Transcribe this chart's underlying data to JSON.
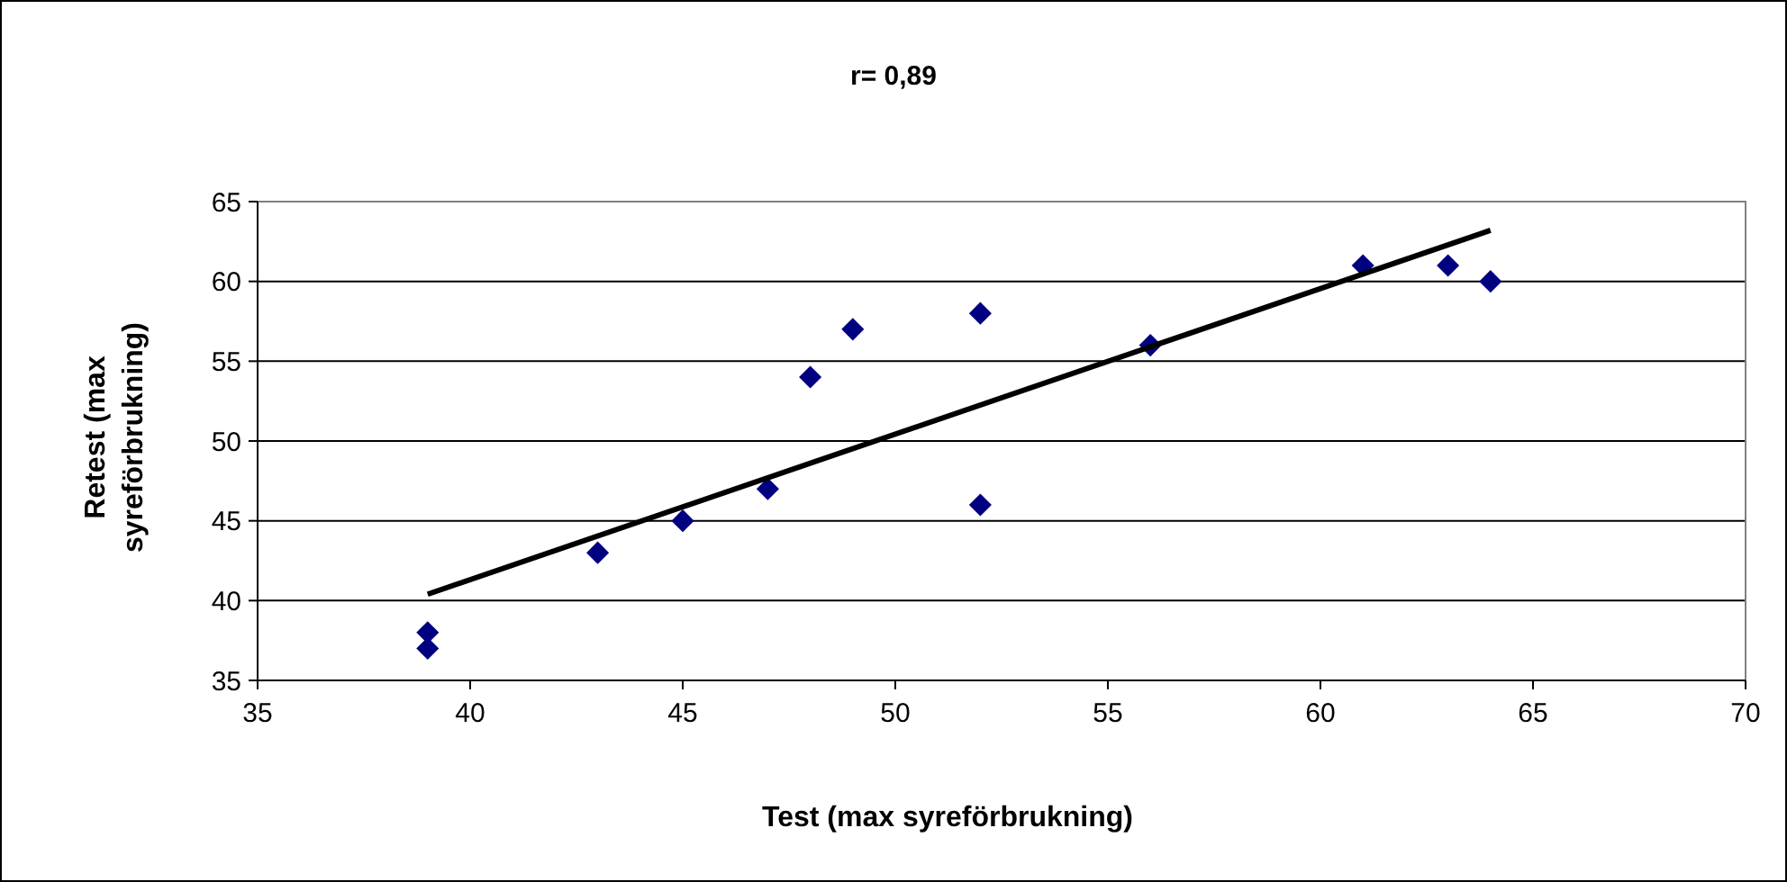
{
  "chart_data": {
    "type": "scatter",
    "title": "r= 0,89",
    "xlabel": "Test (max syreförbrukning)",
    "ylabel": "Retest (max syreförbrukning)",
    "xlim": [
      35,
      70
    ],
    "xticks": [
      35,
      40,
      45,
      50,
      55,
      60,
      65,
      70
    ],
    "ylim": [
      35,
      65
    ],
    "yticks": [
      35,
      40,
      45,
      50,
      55,
      60,
      65
    ],
    "grid": "y",
    "marker": "diamond",
    "series": [
      {
        "color": "#000080",
        "x": [
          39,
          39,
          43,
          45,
          47,
          48,
          49,
          52,
          52,
          56,
          61,
          63,
          64
        ],
        "values": [
          38,
          37,
          43,
          45,
          47,
          54,
          57,
          58,
          46,
          56,
          61,
          61,
          60
        ]
      },
      {
        "type": "line",
        "color": "#000000",
        "marker": "none",
        "line_style": "solid",
        "x": [
          39,
          64
        ],
        "values": [
          40.4,
          63.2
        ]
      }
    ]
  }
}
